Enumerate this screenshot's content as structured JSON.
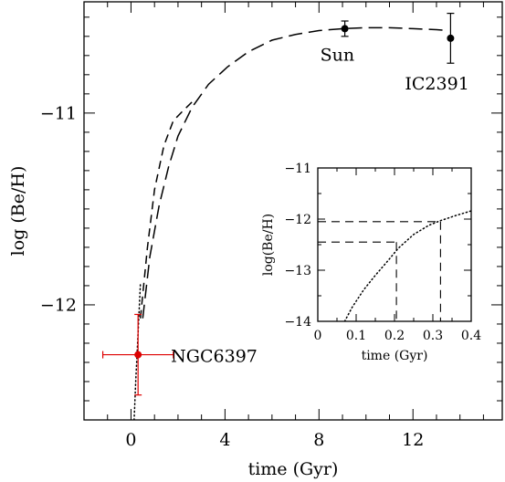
{
  "chart_data": [
    {
      "type": "line",
      "role": "main",
      "xlabel": "time (Gyr)",
      "ylabel": "log (Be/H)",
      "xlim": [
        -2.0,
        15.8
      ],
      "ylim": [
        -12.6,
        -10.42
      ],
      "x_ticks": [
        0,
        4,
        8,
        12
      ],
      "x_tick_labels": [
        "0",
        "4",
        "8",
        "12"
      ],
      "y_ticks": [
        -12,
        -11
      ],
      "y_tick_labels": [
        "−12",
        "−11"
      ],
      "series": [
        {
          "style": "long-dash",
          "color": "#000000",
          "x": [
            0.5,
            0.8,
            1.2,
            1.6,
            2.0,
            2.6,
            3.3,
            4.1,
            5.0,
            6.0,
            7.0,
            8.0,
            9.0,
            10.0,
            11.0,
            12.0,
            13.0,
            13.5
          ],
          "y": [
            -12.07,
            -11.75,
            -11.48,
            -11.28,
            -11.12,
            -10.97,
            -10.85,
            -10.76,
            -10.68,
            -10.62,
            -10.59,
            -10.57,
            -10.56,
            -10.555,
            -10.555,
            -10.56,
            -10.565,
            -10.57
          ]
        },
        {
          "style": "dash",
          "color": "#000000",
          "x": [
            0.4,
            0.7,
            1.0,
            1.4,
            1.8,
            2.2,
            2.7
          ],
          "y": [
            -12.07,
            -11.7,
            -11.4,
            -11.17,
            -11.04,
            -10.99,
            -10.93
          ]
        },
        {
          "style": "dotted",
          "color": "#000000",
          "x": [
            0.1,
            0.2,
            0.3,
            0.4
          ],
          "y": [
            -12.7,
            -12.4,
            -12.15,
            -11.89
          ]
        }
      ],
      "points": [
        {
          "label": "Sun",
          "x": 9.1,
          "y": -10.56,
          "yerr": 0.04,
          "color": "#000000"
        },
        {
          "label": "IC2391",
          "x": 13.6,
          "y": -10.61,
          "yerr": 0.13,
          "color": "#000000"
        },
        {
          "label": "NGC6397",
          "x": 0.3,
          "y": -12.26,
          "yerr": 0.21,
          "xerr": 1.5,
          "color": "#dd0000"
        }
      ]
    },
    {
      "type": "line",
      "role": "inset",
      "xlabel": "time (Gyr)",
      "ylabel": "log(Be/H)",
      "xlim": [
        0,
        0.4
      ],
      "ylim": [
        -14,
        -11
      ],
      "x_ticks": [
        0,
        0.1,
        0.2,
        0.3,
        0.4
      ],
      "x_tick_labels": [
        "0",
        "0.1",
        "0.2",
        "0.3",
        "0.4"
      ],
      "y_ticks": [
        -14,
        -13,
        -12,
        -11
      ],
      "y_tick_labels": [
        "−14",
        "−13",
        "−12",
        "−11"
      ],
      "series": [
        {
          "style": "dotted",
          "color": "#000000",
          "x": [
            0.07,
            0.09,
            0.12,
            0.15,
            0.18,
            0.21,
            0.25,
            0.29,
            0.32,
            0.36,
            0.4
          ],
          "y": [
            -14.0,
            -13.72,
            -13.38,
            -13.1,
            -12.84,
            -12.57,
            -12.3,
            -12.12,
            -12.03,
            -11.93,
            -11.84
          ]
        }
      ],
      "reference_lines": [
        {
          "style": "dash",
          "x0": 0,
          "y0": -12.05,
          "x1": 0.32,
          "y1": -12.05
        },
        {
          "style": "dash",
          "x0": 0.32,
          "y0": -12.05,
          "x1": 0.32,
          "y1": -14
        },
        {
          "style": "dash",
          "x0": 0,
          "y0": -12.45,
          "x1": 0.205,
          "y1": -12.45
        },
        {
          "style": "dash",
          "x0": 0.205,
          "y0": -12.45,
          "x1": 0.205,
          "y1": -14
        }
      ]
    }
  ]
}
